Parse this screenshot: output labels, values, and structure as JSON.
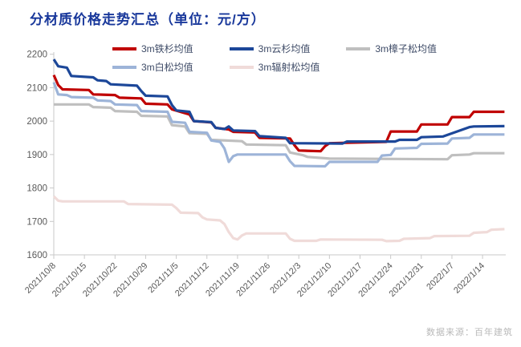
{
  "title": "分材质价格走势汇总（单位：元/方）",
  "watermark": "数据来源：百年建筑",
  "colors": {
    "title": "#19389b",
    "legend_text": "#3d4a66",
    "axis_line": "#c9c9c9",
    "tick_label": "#595959",
    "watermark": "#b9b9b9",
    "background": "#ffffff"
  },
  "chart_data": {
    "type": "line",
    "title": "分材质价格走势汇总（单位：元/方）",
    "xlabel": "",
    "ylabel": "",
    "ylim": [
      1600,
      2200
    ],
    "y_ticks": [
      1600,
      1700,
      1800,
      1900,
      2000,
      2100,
      2200
    ],
    "grid": false,
    "legend_position": "top",
    "x_unit": "days since 2021/10/8",
    "x_domain_days": [
      0,
      103
    ],
    "x_tick_interval_days": 7,
    "x_tick_labels": [
      "2021/10/8",
      "2021/10/15",
      "2021/10/22",
      "2021/10/29",
      "2021/11/5",
      "2021/11/12",
      "2021/11/19",
      "2021/11/26",
      "2021/12/3",
      "2021/12/10",
      "2021/12/17",
      "2021/12/24",
      "2021/12/31",
      "2022/1/7",
      "2022/1/14"
    ],
    "series": [
      {
        "name": "3m铁杉均值",
        "color": "#c00000",
        "points": [
          [
            0,
            2138
          ],
          [
            1,
            2108
          ],
          [
            2,
            2095
          ],
          [
            8,
            2093
          ],
          [
            9,
            2080
          ],
          [
            14,
            2078
          ],
          [
            15,
            2070
          ],
          [
            20,
            2068
          ],
          [
            21,
            2052
          ],
          [
            26,
            2050
          ],
          [
            27,
            2035
          ],
          [
            31,
            2020
          ],
          [
            32,
            2000
          ],
          [
            36,
            1996
          ],
          [
            37,
            1980
          ],
          [
            40,
            1975
          ],
          [
            41,
            1968
          ],
          [
            46,
            1966
          ],
          [
            47,
            1950
          ],
          [
            54,
            1948
          ],
          [
            55,
            1928
          ],
          [
            56,
            1912
          ],
          [
            61,
            1910
          ],
          [
            62,
            1925
          ],
          [
            63,
            1934
          ],
          [
            76,
            1938
          ],
          [
            77,
            1969
          ],
          [
            83,
            1969
          ],
          [
            84,
            1990
          ],
          [
            90,
            1990
          ],
          [
            91,
            2012
          ],
          [
            95,
            2012
          ],
          [
            96,
            2028
          ],
          [
            103,
            2028
          ]
        ]
      },
      {
        "name": "3m云杉均值",
        "color": "#1c4799",
        "points": [
          [
            0,
            2185
          ],
          [
            1,
            2164
          ],
          [
            3,
            2160
          ],
          [
            4,
            2135
          ],
          [
            9,
            2131
          ],
          [
            10,
            2122
          ],
          [
            12,
            2120
          ],
          [
            13,
            2110
          ],
          [
            19,
            2106
          ],
          [
            20,
            2090
          ],
          [
            21,
            2076
          ],
          [
            26,
            2074
          ],
          [
            27,
            2048
          ],
          [
            28,
            2032
          ],
          [
            31,
            2028
          ],
          [
            32,
            2000
          ],
          [
            36,
            1997
          ],
          [
            37,
            1980
          ],
          [
            39,
            1976
          ],
          [
            40,
            1984
          ],
          [
            41,
            1972
          ],
          [
            46,
            1970
          ],
          [
            47,
            1955
          ],
          [
            53,
            1950
          ],
          [
            54,
            1934
          ],
          [
            66,
            1933
          ],
          [
            67,
            1939
          ],
          [
            78,
            1939
          ],
          [
            79,
            1944
          ],
          [
            83,
            1944
          ],
          [
            84,
            1952
          ],
          [
            89,
            1954
          ],
          [
            95,
            1982
          ],
          [
            96,
            1984
          ],
          [
            103,
            1985
          ]
        ]
      },
      {
        "name": "3m樟子松均值",
        "color": "#bfbfbf",
        "points": [
          [
            0,
            2050
          ],
          [
            8,
            2050
          ],
          [
            9,
            2042
          ],
          [
            13,
            2040
          ],
          [
            14,
            2030
          ],
          [
            19,
            2028
          ],
          [
            20,
            2016
          ],
          [
            26,
            2014
          ],
          [
            27,
            1988
          ],
          [
            30,
            1984
          ],
          [
            31,
            1964
          ],
          [
            35,
            1962
          ],
          [
            36,
            1944
          ],
          [
            43,
            1940
          ],
          [
            44,
            1930
          ],
          [
            53,
            1928
          ],
          [
            54,
            1906
          ],
          [
            57,
            1898
          ],
          [
            58,
            1893
          ],
          [
            63,
            1888
          ],
          [
            90,
            1886
          ],
          [
            91,
            1898
          ],
          [
            95,
            1900
          ],
          [
            96,
            1904
          ],
          [
            103,
            1904
          ]
        ]
      },
      {
        "name": "3m白松均值",
        "color": "#9db4d8",
        "points": [
          [
            0,
            2116
          ],
          [
            1,
            2080
          ],
          [
            3,
            2078
          ],
          [
            4,
            2072
          ],
          [
            9,
            2070
          ],
          [
            10,
            2062
          ],
          [
            13,
            2060
          ],
          [
            14,
            2050
          ],
          [
            19,
            2048
          ],
          [
            20,
            2030
          ],
          [
            26,
            2028
          ],
          [
            27,
            1998
          ],
          [
            30,
            1995
          ],
          [
            31,
            1968
          ],
          [
            35,
            1965
          ],
          [
            36,
            1942
          ],
          [
            38,
            1938
          ],
          [
            39,
            1918
          ],
          [
            40,
            1878
          ],
          [
            41,
            1895
          ],
          [
            42,
            1900
          ],
          [
            53,
            1900
          ],
          [
            54,
            1880
          ],
          [
            55,
            1866
          ],
          [
            62,
            1865
          ],
          [
            63,
            1878
          ],
          [
            74,
            1878
          ],
          [
            75,
            1897
          ],
          [
            77,
            1899
          ],
          [
            78,
            1918
          ],
          [
            83,
            1920
          ],
          [
            84,
            1932
          ],
          [
            90,
            1933
          ],
          [
            91,
            1948
          ],
          [
            95,
            1950
          ],
          [
            96,
            1960
          ],
          [
            103,
            1960
          ]
        ]
      },
      {
        "name": "3m辐射松均值",
        "color": "#f0dbd9",
        "points": [
          [
            0,
            1775
          ],
          [
            1,
            1762
          ],
          [
            2,
            1760
          ],
          [
            16,
            1760
          ],
          [
            17,
            1752
          ],
          [
            27,
            1750
          ],
          [
            28,
            1740
          ],
          [
            29,
            1726
          ],
          [
            33,
            1725
          ],
          [
            34,
            1712
          ],
          [
            35,
            1706
          ],
          [
            38,
            1703
          ],
          [
            39,
            1692
          ],
          [
            40,
            1668
          ],
          [
            41,
            1650
          ],
          [
            42,
            1646
          ],
          [
            43,
            1658
          ],
          [
            44,
            1664
          ],
          [
            53,
            1664
          ],
          [
            54,
            1648
          ],
          [
            55,
            1642
          ],
          [
            60,
            1642
          ],
          [
            61,
            1646
          ],
          [
            75,
            1645
          ],
          [
            76,
            1641
          ],
          [
            79,
            1642
          ],
          [
            80,
            1648
          ],
          [
            86,
            1650
          ],
          [
            87,
            1656
          ],
          [
            95,
            1657
          ],
          [
            96,
            1666
          ],
          [
            99,
            1668
          ],
          [
            100,
            1675
          ],
          [
            103,
            1677
          ]
        ]
      }
    ]
  },
  "legend": {
    "rows": [
      [
        0,
        1,
        2
      ],
      [
        3,
        4
      ]
    ]
  }
}
